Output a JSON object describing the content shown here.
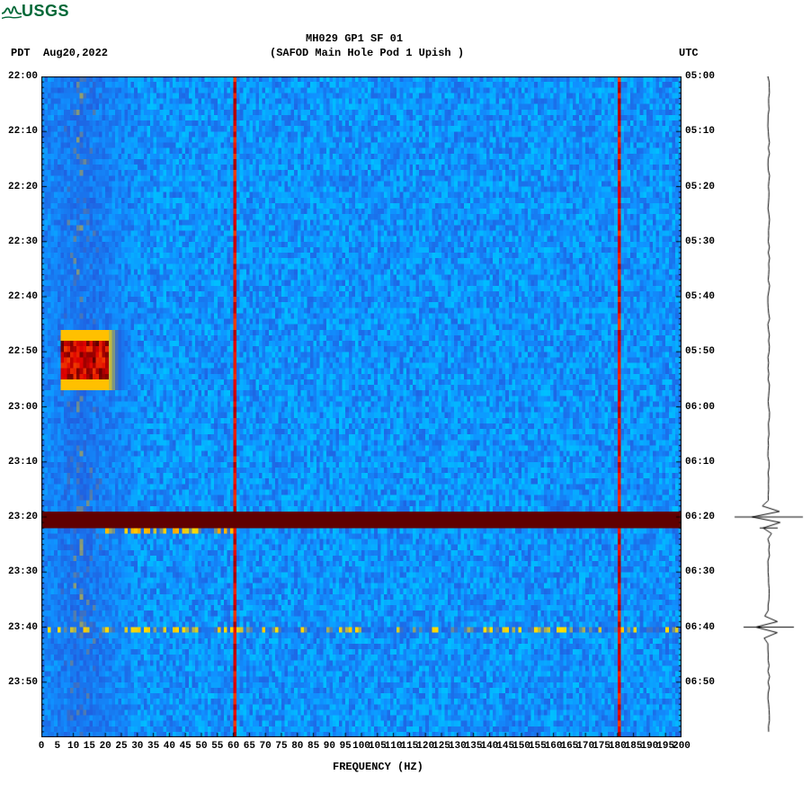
{
  "logo": {
    "text": "USGS",
    "color": "#006837"
  },
  "header": {
    "left_tz": "PDT",
    "date": "Aug20,2022",
    "title_line1": "MH029 GP1 SF 01",
    "title_line2": "(SAFOD Main Hole Pod 1 Upish )",
    "right_tz": "UTC"
  },
  "spectrogram": {
    "type": "heatmap",
    "xlabel": "FREQUENCY (HZ)",
    "xlim": [
      0,
      200
    ],
    "xtick_step": 5,
    "xtick_labels": [
      "0",
      "5",
      "10",
      "15",
      "20",
      "25",
      "30",
      "35",
      "40",
      "45",
      "50",
      "55",
      "60",
      "65",
      "70",
      "75",
      "80",
      "85",
      "90",
      "95",
      "100",
      "105",
      "110",
      "115",
      "120",
      "125",
      "130",
      "135",
      "140",
      "145",
      "150",
      "155",
      "160",
      "165",
      "170",
      "175",
      "180",
      "185",
      "190",
      "195",
      "200"
    ],
    "y_left_labels": [
      "22:00",
      "22:10",
      "22:20",
      "22:30",
      "22:40",
      "22:50",
      "23:00",
      "23:10",
      "23:20",
      "23:30",
      "23:40",
      "23:50"
    ],
    "y_right_labels": [
      "05:00",
      "05:10",
      "05:20",
      "05:30",
      "05:40",
      "05:50",
      "06:00",
      "06:10",
      "06:20",
      "06:30",
      "06:40",
      "06:50"
    ],
    "y_rows": 120,
    "y_minor_per_major": 10,
    "colormap": {
      "stops": [
        [
          0.0,
          "#00d0b0"
        ],
        [
          0.1,
          "#00d8d8"
        ],
        [
          0.2,
          "#00c0ff"
        ],
        [
          0.35,
          "#1090ff"
        ],
        [
          0.5,
          "#2060e0"
        ],
        [
          0.65,
          "#ffe000"
        ],
        [
          0.8,
          "#ff8000"
        ],
        [
          0.9,
          "#e00000"
        ],
        [
          1.0,
          "#600000"
        ]
      ]
    },
    "background_base_range": [
      0.2,
      0.48
    ],
    "low_freq_band": {
      "freq_range": [
        0,
        30
      ],
      "value_range": [
        0.1,
        0.7
      ],
      "peak_freq": 12
    },
    "vertical_lines": [
      {
        "freq": 60,
        "color": "#c02000",
        "width": 1
      },
      {
        "freq": 180,
        "color": "#c02000",
        "width": 1
      }
    ],
    "events": [
      {
        "type": "blob",
        "time_row_start": 48,
        "time_row_end": 54,
        "freq_start": 6,
        "freq_end": 20,
        "intensity": 1.0,
        "halo_freq_end": 35
      },
      {
        "type": "hband",
        "time_row": 80,
        "freq_start": 0,
        "freq_end": 200,
        "intensity": 1.0,
        "thickness": 2
      },
      {
        "type": "hband_faint",
        "time_row": 82,
        "freq_start": 20,
        "freq_end": 60,
        "intensity": 0.75,
        "thickness": 1
      },
      {
        "type": "hband_faint",
        "time_row": 100,
        "freq_start": 0,
        "freq_end": 200,
        "intensity": 0.7,
        "thickness": 1
      }
    ]
  },
  "side_seismogram": {
    "axis_x": 40,
    "events": [
      {
        "row": 80,
        "amplitude": 38
      },
      {
        "row": 82,
        "amplitude": 10
      },
      {
        "row": 100,
        "amplitude": 28
      }
    ],
    "line_color": "#000000"
  },
  "fonts": {
    "label_fontsize": 12,
    "tick_fontsize": 11
  }
}
